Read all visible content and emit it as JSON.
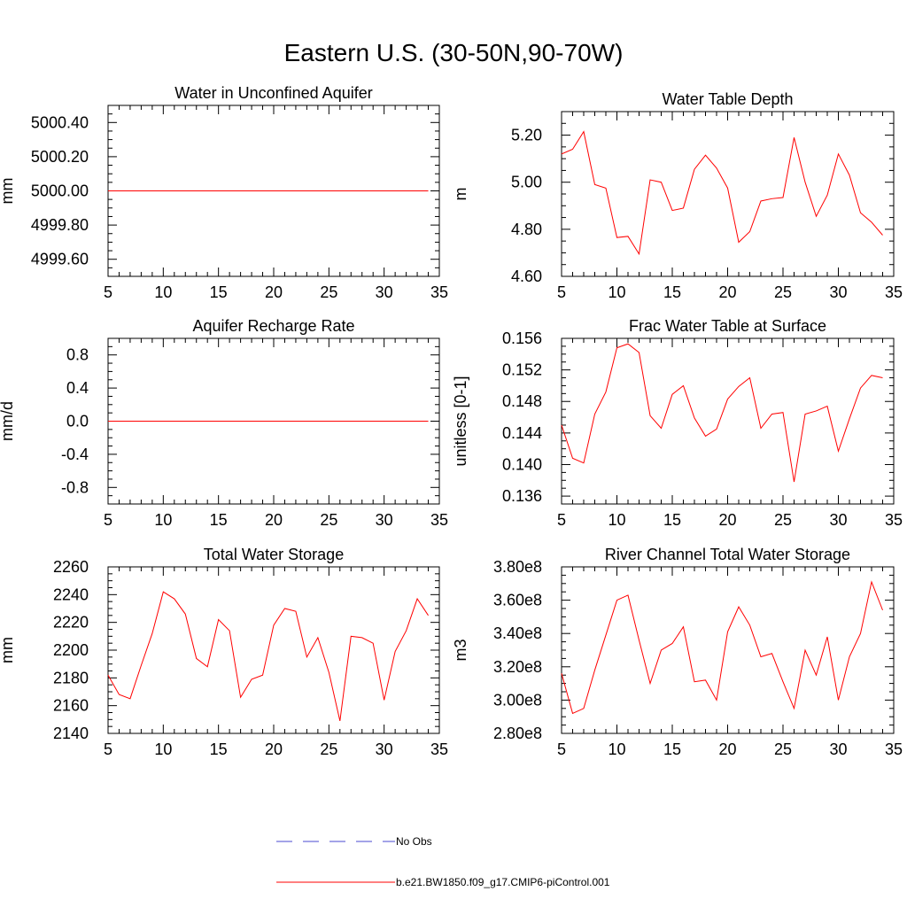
{
  "figure_title": "Eastern U.S. (30-50N,90-70W)",
  "colors": {
    "model_line": "#ff0000",
    "obs_line": "#4a4ad0",
    "axis": "#000000"
  },
  "legend": {
    "items": [
      {
        "label": "No Obs",
        "style": "dashed",
        "color": "#4a4ad0"
      },
      {
        "label": "b.e21.BW1850.f09_g17.CMIP6-piControl.001",
        "style": "solid",
        "color": "#ff0000"
      }
    ]
  },
  "chart_data": [
    {
      "type": "line",
      "title": "Water in Unconfined Aquifer",
      "ylabel": "mm",
      "xlim": [
        5,
        35
      ],
      "ylim": [
        4999.5,
        5000.5
      ],
      "xticks": [
        5,
        10,
        15,
        20,
        25,
        30,
        35
      ],
      "yticks": [
        4999.6,
        4999.8,
        5000.0,
        5000.2,
        5000.4
      ],
      "ytick_labels": [
        "4999.60",
        "4999.80",
        "5000.00",
        "5000.20",
        "5000.40"
      ],
      "series": [
        {
          "name": "b.e21.BW1850.f09_g17.CMIP6-piControl.001",
          "x": [
            5,
            6,
            7,
            8,
            9,
            10,
            11,
            12,
            13,
            14,
            15,
            16,
            17,
            18,
            19,
            20,
            21,
            22,
            23,
            24,
            25,
            26,
            27,
            28,
            29,
            30,
            31,
            32,
            33,
            34
          ],
          "values": [
            5000,
            5000,
            5000,
            5000,
            5000,
            5000,
            5000,
            5000,
            5000,
            5000,
            5000,
            5000,
            5000,
            5000,
            5000,
            5000,
            5000,
            5000,
            5000,
            5000,
            5000,
            5000,
            5000,
            5000,
            5000,
            5000,
            5000,
            5000,
            5000,
            5000
          ]
        }
      ]
    },
    {
      "type": "line",
      "title": "Water Table Depth",
      "ylabel": "m",
      "xlim": [
        5,
        35
      ],
      "ylim": [
        4.6,
        5.3
      ],
      "xticks": [
        5,
        10,
        15,
        20,
        25,
        30,
        35
      ],
      "yticks": [
        4.6,
        4.8,
        5.0,
        5.2
      ],
      "ytick_labels": [
        "4.60",
        "4.80",
        "5.00",
        "5.20"
      ],
      "series": [
        {
          "name": "b.e21.BW1850.f09_g17.CMIP6-piControl.001",
          "x": [
            5,
            6,
            7,
            8,
            9,
            10,
            11,
            12,
            13,
            14,
            15,
            16,
            17,
            18,
            19,
            20,
            21,
            22,
            23,
            24,
            25,
            26,
            27,
            28,
            29,
            30,
            31,
            32,
            33,
            34
          ],
          "values": [
            5.12,
            5.14,
            5.215,
            4.99,
            4.975,
            4.765,
            4.77,
            4.695,
            5.01,
            5.0,
            4.88,
            4.89,
            5.055,
            5.115,
            5.06,
            4.975,
            4.745,
            4.79,
            4.92,
            4.93,
            4.935,
            5.19,
            5.0,
            4.855,
            4.945,
            5.12,
            5.03,
            4.87,
            4.83,
            4.775
          ]
        }
      ]
    },
    {
      "type": "line",
      "title": "Aquifer Recharge Rate",
      "ylabel": "mm/d",
      "xlim": [
        5,
        35
      ],
      "ylim": [
        -1.0,
        1.0
      ],
      "xticks": [
        5,
        10,
        15,
        20,
        25,
        30,
        35
      ],
      "yticks": [
        -0.8,
        -0.4,
        0.0,
        0.4,
        0.8
      ],
      "ytick_labels": [
        "-0.8",
        "-0.4",
        "0.0",
        "0.4",
        "0.8"
      ],
      "series": [
        {
          "name": "b.e21.BW1850.f09_g17.CMIP6-piControl.001",
          "x": [
            5,
            6,
            7,
            8,
            9,
            10,
            11,
            12,
            13,
            14,
            15,
            16,
            17,
            18,
            19,
            20,
            21,
            22,
            23,
            24,
            25,
            26,
            27,
            28,
            29,
            30,
            31,
            32,
            33,
            34
          ],
          "values": [
            0,
            0,
            0,
            0,
            0,
            0,
            0,
            0,
            0,
            0,
            0,
            0,
            0,
            0,
            0,
            0,
            0,
            0,
            0,
            0,
            0,
            0,
            0,
            0,
            0,
            0,
            0,
            0,
            0,
            0
          ]
        }
      ]
    },
    {
      "type": "line",
      "title": "Frac Water Table at Surface",
      "ylabel": "unitless [0-1]",
      "xlim": [
        5,
        35
      ],
      "ylim": [
        0.135,
        0.156
      ],
      "xticks": [
        5,
        10,
        15,
        20,
        25,
        30,
        35
      ],
      "yticks": [
        0.136,
        0.14,
        0.144,
        0.148,
        0.152,
        0.156
      ],
      "ytick_labels": [
        "0.136",
        "0.140",
        "0.144",
        "0.148",
        "0.152",
        "0.156"
      ],
      "series": [
        {
          "name": "b.e21.BW1850.f09_g17.CMIP6-piControl.001",
          "x": [
            5,
            6,
            7,
            8,
            9,
            10,
            11,
            12,
            13,
            14,
            15,
            16,
            17,
            18,
            19,
            20,
            21,
            22,
            23,
            24,
            25,
            26,
            27,
            28,
            29,
            30,
            31,
            32,
            33,
            34
          ],
          "values": [
            0.145,
            0.1408,
            0.1402,
            0.1464,
            0.1492,
            0.1548,
            0.1553,
            0.1542,
            0.1462,
            0.1446,
            0.1489,
            0.15,
            0.1459,
            0.1436,
            0.1445,
            0.1483,
            0.1499,
            0.151,
            0.1446,
            0.1464,
            0.1466,
            0.1378,
            0.1464,
            0.1468,
            0.1474,
            0.1417,
            0.1458,
            0.1497,
            0.1513,
            0.151
          ]
        }
      ]
    },
    {
      "type": "line",
      "title": "Total Water Storage",
      "ylabel": "mm",
      "xlim": [
        5,
        35
      ],
      "ylim": [
        2140,
        2260
      ],
      "xticks": [
        5,
        10,
        15,
        20,
        25,
        30,
        35
      ],
      "yticks": [
        2140,
        2160,
        2180,
        2200,
        2220,
        2240,
        2260
      ],
      "ytick_labels": [
        "2140",
        "2160",
        "2180",
        "2200",
        "2220",
        "2240",
        "2260"
      ],
      "series": [
        {
          "name": "b.e21.BW1850.f09_g17.CMIP6-piControl.001",
          "x": [
            5,
            6,
            7,
            8,
            9,
            10,
            11,
            12,
            13,
            14,
            15,
            16,
            17,
            18,
            19,
            20,
            21,
            22,
            23,
            24,
            25,
            26,
            27,
            28,
            29,
            30,
            31,
            32,
            33,
            34
          ],
          "values": [
            2182,
            2168,
            2165,
            2189,
            2212,
            2242,
            2237,
            2226,
            2194,
            2188,
            2222,
            2214,
            2166,
            2179,
            2182,
            2218,
            2230,
            2228,
            2195,
            2209,
            2184,
            2149,
            2210,
            2209,
            2205,
            2164,
            2199,
            2214,
            2237,
            2225
          ]
        }
      ]
    },
    {
      "type": "line",
      "title": "River Channel Total Water Storage",
      "ylabel": "m3",
      "xlim": [
        5,
        35
      ],
      "ylim": [
        280000000,
        380000000
      ],
      "xticks": [
        5,
        10,
        15,
        20,
        25,
        30,
        35
      ],
      "yticks": [
        280000000,
        300000000,
        320000000,
        340000000,
        360000000,
        380000000
      ],
      "ytick_labels": [
        "2.80e8",
        "3.00e8",
        "3.20e8",
        "3.40e8",
        "3.60e8",
        "3.80e8"
      ],
      "series": [
        {
          "name": "b.e21.BW1850.f09_g17.CMIP6-piControl.001",
          "x": [
            5,
            6,
            7,
            8,
            9,
            10,
            11,
            12,
            13,
            14,
            15,
            16,
            17,
            18,
            19,
            20,
            21,
            22,
            23,
            24,
            25,
            26,
            27,
            28,
            29,
            30,
            31,
            32,
            33,
            34
          ],
          "values": [
            316000000,
            292000000,
            295000000,
            318000000,
            339000000,
            360000000,
            363000000,
            336000000,
            310000000,
            330000000,
            334000000,
            344000000,
            311000000,
            312000000,
            300000000,
            341000000,
            356000000,
            345000000,
            326000000,
            328000000,
            311000000,
            295000000,
            330000000,
            315000000,
            338000000,
            300000000,
            326000000,
            340000000,
            371000000,
            354000000
          ]
        }
      ]
    }
  ]
}
